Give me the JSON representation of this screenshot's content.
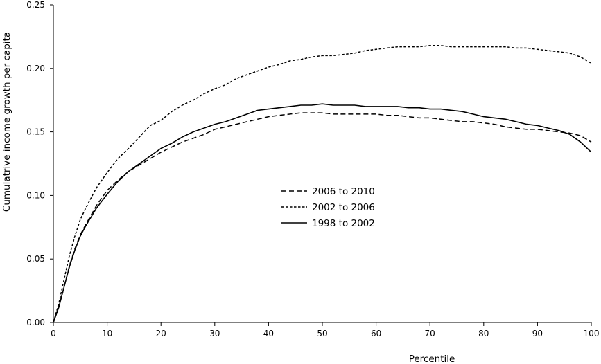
{
  "chart_data": {
    "type": "line",
    "title": "",
    "xlabel": "Percentile",
    "ylabel": "Cumulatrive income growth per capita",
    "xlim": [
      0,
      100
    ],
    "ylim": [
      0,
      0.25
    ],
    "x_ticks": [
      0,
      10,
      20,
      30,
      40,
      50,
      60,
      70,
      80,
      90,
      100
    ],
    "x_tick_labels": [
      "0",
      "10",
      "20",
      "30",
      "40",
      "50",
      "60",
      "70",
      "80",
      "90",
      "100"
    ],
    "y_ticks": [
      0,
      0.05,
      0.1,
      0.15,
      0.2,
      0.25
    ],
    "y_tick_labels": [
      "0.00",
      "0.05",
      "0.10",
      "0.15",
      "0.20",
      "0.25"
    ],
    "grid": false,
    "legend_position": "center",
    "series": [
      {
        "name": "2006 to 2010",
        "style": "dashed",
        "color": "#000000",
        "x": [
          0,
          1,
          2,
          3,
          4,
          5,
          6,
          8,
          10,
          12,
          14,
          16,
          18,
          20,
          22,
          24,
          26,
          28,
          30,
          32,
          34,
          36,
          38,
          40,
          42,
          44,
          46,
          48,
          50,
          52,
          54,
          56,
          58,
          60,
          62,
          64,
          66,
          68,
          70,
          72,
          74,
          76,
          78,
          80,
          82,
          84,
          86,
          88,
          90,
          92,
          94,
          96,
          98,
          100
        ],
        "y": [
          0.0,
          0.012,
          0.028,
          0.045,
          0.058,
          0.069,
          0.077,
          0.092,
          0.104,
          0.112,
          0.119,
          0.124,
          0.129,
          0.134,
          0.138,
          0.142,
          0.145,
          0.148,
          0.152,
          0.154,
          0.156,
          0.158,
          0.16,
          0.162,
          0.163,
          0.164,
          0.165,
          0.165,
          0.165,
          0.164,
          0.164,
          0.164,
          0.164,
          0.164,
          0.163,
          0.163,
          0.162,
          0.161,
          0.161,
          0.16,
          0.159,
          0.158,
          0.158,
          0.157,
          0.156,
          0.154,
          0.153,
          0.152,
          0.152,
          0.151,
          0.15,
          0.149,
          0.147,
          0.142
        ]
      },
      {
        "name": "2002 to 2006",
        "style": "dotted",
        "color": "#000000",
        "x": [
          0,
          1,
          2,
          3,
          4,
          5,
          6,
          8,
          10,
          12,
          14,
          16,
          18,
          20,
          22,
          24,
          26,
          28,
          30,
          32,
          34,
          36,
          38,
          40,
          42,
          44,
          46,
          48,
          50,
          52,
          54,
          56,
          58,
          60,
          62,
          64,
          66,
          68,
          70,
          72,
          74,
          76,
          78,
          80,
          82,
          84,
          86,
          88,
          90,
          92,
          94,
          96,
          98,
          100
        ],
        "y": [
          0.0,
          0.015,
          0.034,
          0.053,
          0.068,
          0.081,
          0.09,
          0.106,
          0.118,
          0.129,
          0.137,
          0.146,
          0.155,
          0.159,
          0.166,
          0.171,
          0.175,
          0.18,
          0.184,
          0.187,
          0.192,
          0.195,
          0.198,
          0.201,
          0.203,
          0.206,
          0.207,
          0.209,
          0.21,
          0.21,
          0.211,
          0.212,
          0.214,
          0.215,
          0.216,
          0.217,
          0.217,
          0.217,
          0.218,
          0.218,
          0.217,
          0.217,
          0.217,
          0.217,
          0.217,
          0.217,
          0.216,
          0.216,
          0.215,
          0.214,
          0.213,
          0.212,
          0.209,
          0.204
        ]
      },
      {
        "name": "1998 to 2002",
        "style": "solid",
        "color": "#000000",
        "x": [
          0,
          1,
          2,
          3,
          4,
          5,
          6,
          8,
          10,
          12,
          14,
          16,
          18,
          20,
          22,
          24,
          26,
          28,
          30,
          32,
          34,
          36,
          38,
          40,
          42,
          44,
          46,
          48,
          50,
          52,
          54,
          56,
          58,
          60,
          62,
          64,
          66,
          68,
          70,
          72,
          74,
          76,
          78,
          80,
          82,
          84,
          86,
          88,
          90,
          92,
          94,
          96,
          98,
          100
        ],
        "y": [
          0.0,
          0.012,
          0.028,
          0.044,
          0.057,
          0.068,
          0.076,
          0.09,
          0.101,
          0.111,
          0.119,
          0.125,
          0.131,
          0.137,
          0.141,
          0.146,
          0.15,
          0.153,
          0.156,
          0.158,
          0.161,
          0.164,
          0.167,
          0.168,
          0.169,
          0.17,
          0.171,
          0.171,
          0.172,
          0.171,
          0.171,
          0.171,
          0.17,
          0.17,
          0.17,
          0.17,
          0.169,
          0.169,
          0.168,
          0.168,
          0.167,
          0.166,
          0.164,
          0.162,
          0.161,
          0.16,
          0.158,
          0.156,
          0.155,
          0.153,
          0.151,
          0.148,
          0.142,
          0.134
        ]
      }
    ]
  }
}
